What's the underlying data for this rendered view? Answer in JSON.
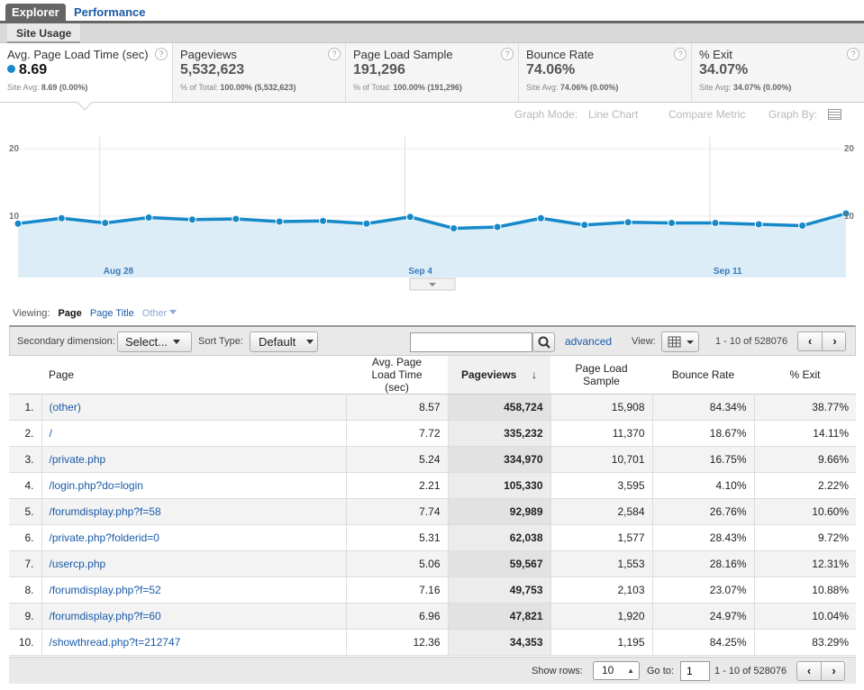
{
  "tabs": {
    "explorer": "Explorer",
    "performance": "Performance"
  },
  "subtab": "Site Usage",
  "metrics": [
    {
      "name": "Avg. Page Load Time (sec)",
      "value": "8.69",
      "sub_label": "Site Avg:",
      "sub_value": "8.69 (0.00%)",
      "selected": true
    },
    {
      "name": "Pageviews",
      "value": "5,532,623",
      "sub_label": "% of Total:",
      "sub_value": "100.00% (5,532,623)"
    },
    {
      "name": "Page Load Sample",
      "value": "191,296",
      "sub_label": "% of Total:",
      "sub_value": "100.00% (191,296)"
    },
    {
      "name": "Bounce Rate",
      "value": "74.06%",
      "sub_label": "Site Avg:",
      "sub_value": "74.06% (0.00%)"
    },
    {
      "name": "% Exit",
      "value": "34.07%",
      "sub_label": "Site Avg:",
      "sub_value": "34.07% (0.00%)"
    }
  ],
  "help_icon": "?",
  "graph_controls": {
    "mode_label": "Graph Mode:",
    "mode_value": "Line Chart",
    "compare": "Compare Metric",
    "graph_by": "Graph By:"
  },
  "chart_data": {
    "type": "area",
    "y_ticks_left": [
      "20",
      "10"
    ],
    "y_ticks_right": [
      "20",
      "10"
    ],
    "ylim": [
      0,
      20
    ],
    "x_labels": [
      "Aug 28",
      "Sep 4",
      "Sep 11"
    ],
    "x_label_index": [
      2,
      9,
      16
    ],
    "series": [
      {
        "values": [
          8.9,
          9.7,
          9.0,
          9.8,
          9.5,
          9.6,
          9.2,
          9.3,
          8.9,
          9.9,
          8.2,
          8.4,
          9.7,
          8.7,
          9.1,
          9.0,
          9.0,
          8.8,
          8.6,
          10.4
        ]
      }
    ],
    "color": "#1689c9",
    "fill": "#dcedf7"
  },
  "viewing": {
    "label": "Viewing:",
    "current": "Page",
    "alt": "Page Title",
    "other": "Other"
  },
  "toolbar": {
    "secondary_label": "Secondary dimension:",
    "secondary_value": "Select...",
    "sort_label": "Sort Type:",
    "sort_value": "Default",
    "advanced": "advanced",
    "view_label": "View:",
    "range": "1 - 10 of 528076",
    "prev": "‹",
    "next": "›"
  },
  "table": {
    "headers": [
      "Page",
      "Avg. Page Load Time (sec)",
      "Pageviews",
      "Page Load Sample",
      "Bounce Rate",
      "% Exit"
    ],
    "sort_arrow": "↓",
    "rows": [
      [
        "1.",
        "(other)",
        "8.57",
        "458,724",
        "15,908",
        "84.34%",
        "38.77%"
      ],
      [
        "2.",
        "/",
        "7.72",
        "335,232",
        "11,370",
        "18.67%",
        "14.11%"
      ],
      [
        "3.",
        "/private.php",
        "5.24",
        "334,970",
        "10,701",
        "16.75%",
        "9.66%"
      ],
      [
        "4.",
        "/login.php?do=login",
        "2.21",
        "105,330",
        "3,595",
        "4.10%",
        "2.22%"
      ],
      [
        "5.",
        "/forumdisplay.php?f=58",
        "7.74",
        "92,989",
        "2,584",
        "26.76%",
        "10.60%"
      ],
      [
        "6.",
        "/private.php?folderid=0",
        "5.31",
        "62,038",
        "1,577",
        "28.43%",
        "9.72%"
      ],
      [
        "7.",
        "/usercp.php",
        "5.06",
        "59,567",
        "1,553",
        "28.16%",
        "12.31%"
      ],
      [
        "8.",
        "/forumdisplay.php?f=52",
        "7.16",
        "49,753",
        "2,103",
        "23.07%",
        "10.88%"
      ],
      [
        "9.",
        "/forumdisplay.php?f=60",
        "6.96",
        "47,821",
        "1,920",
        "24.97%",
        "10.04%"
      ],
      [
        "10.",
        "/showthread.php?t=212747",
        "12.36",
        "34,353",
        "1,195",
        "84.25%",
        "83.29%"
      ]
    ]
  },
  "footer": {
    "show_rows_label": "Show rows:",
    "show_rows_value": "10",
    "goto_label": "Go to:",
    "goto_value": "1",
    "range": "1 - 10 of 528076"
  }
}
